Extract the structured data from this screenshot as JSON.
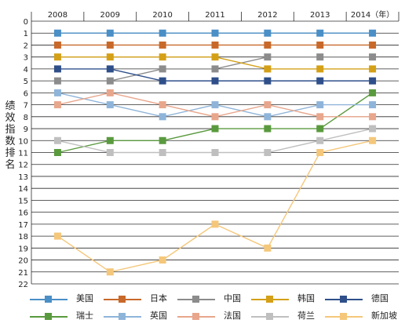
{
  "chart_data": {
    "type": "line",
    "title": "",
    "xlabel": "",
    "ylabel": "绩效指数排名",
    "x": [
      "2008",
      "2009",
      "2010",
      "2011",
      "2012",
      "2013",
      "2014"
    ],
    "x_unit_note": "（年）",
    "ylim": [
      0,
      22
    ],
    "y_reversed": true,
    "y_ticks": [
      0,
      1,
      2,
      3,
      4,
      5,
      6,
      7,
      8,
      9,
      10,
      11,
      12,
      13,
      14,
      15,
      16,
      17,
      18,
      19,
      20,
      21,
      22
    ],
    "grid": "horizontal",
    "legend_position": "bottom",
    "series": [
      {
        "name": "美国",
        "color": "#4a8fc6",
        "values": [
          1,
          1,
          1,
          1,
          1,
          1,
          1
        ]
      },
      {
        "name": "日本",
        "color": "#c8692a",
        "values": [
          2,
          2,
          2,
          2,
          2,
          2,
          2
        ]
      },
      {
        "name": "中国",
        "color": "#8c8c8c",
        "values": [
          5,
          5,
          4,
          4,
          3,
          3,
          3
        ]
      },
      {
        "name": "韩国",
        "color": "#d4a017",
        "values": [
          3,
          3,
          3,
          3,
          4,
          4,
          4
        ]
      },
      {
        "name": "德国",
        "color": "#2f4f8a",
        "values": [
          4,
          4,
          5,
          5,
          5,
          5,
          5
        ]
      },
      {
        "name": "瑞士",
        "color": "#5a9a3e",
        "values": [
          11,
          10,
          10,
          9,
          9,
          9,
          6
        ]
      },
      {
        "name": "英国",
        "color": "#8fb4d9",
        "values": [
          6,
          7,
          8,
          7,
          8,
          7,
          7
        ]
      },
      {
        "name": "法国",
        "color": "#e8a68c",
        "values": [
          7,
          6,
          7,
          8,
          7,
          8,
          8
        ]
      },
      {
        "name": "荷兰",
        "color": "#bfbfbf",
        "values": [
          10,
          11,
          11,
          11,
          11,
          10,
          9
        ]
      },
      {
        "name": "新加坡",
        "color": "#f5c77a",
        "values": [
          18,
          21,
          20,
          17,
          19,
          11,
          10
        ]
      }
    ]
  }
}
